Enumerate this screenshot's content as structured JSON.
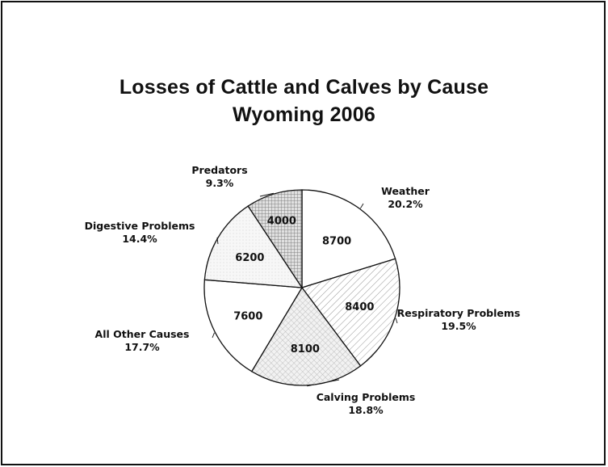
{
  "chart_data": {
    "type": "pie",
    "title": "Losses of Cattle and Calves by Cause",
    "subtitle": "Wyoming  2006",
    "categories": [
      "Weather",
      "Respiratory Problems",
      "Calving Problems",
      "All Other Causes",
      "Digestive Problems",
      "Predators"
    ],
    "values": [
      8700,
      8400,
      8100,
      7600,
      6200,
      4000
    ],
    "value_labels": [
      "8700",
      "8400",
      "8100",
      "7600",
      "6200",
      "4000"
    ],
    "percent_labels": [
      "20.2%",
      "19.5%",
      "18.8%",
      "17.7%",
      "14.4%",
      "9.3%"
    ],
    "start_angle_deg": 0,
    "direction": "clockwise",
    "legend": "none",
    "slice_fills": [
      "plain",
      "diagonal-hatch",
      "fine-cross-hatch",
      "plain",
      "light-dots",
      "dense-grid"
    ]
  }
}
